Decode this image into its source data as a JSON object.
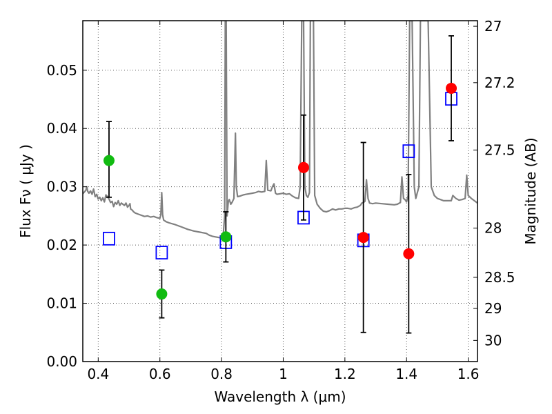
{
  "chart_data": {
    "type": "scatter",
    "xlabel": "Wavelength  λ (μm)",
    "ylabel": "Flux  Fν  ( μJy )",
    "ylabel_right": "Magnitude (AB)",
    "xlim": [
      0.35,
      1.63
    ],
    "ylim": [
      0.0,
      0.0585
    ],
    "grid": true,
    "x_ticks": [
      "0.4",
      "0.6",
      "0.8",
      "1",
      "1.2",
      "1.4",
      "1.6"
    ],
    "y_ticks": [
      "0.00",
      "0.01",
      "0.02",
      "0.03",
      "0.04",
      "0.05"
    ],
    "right_ticks": [
      {
        "label": "27",
        "value": 27.0
      },
      {
        "label": "27.2",
        "value": 27.2
      },
      {
        "label": "27.5",
        "value": 27.5
      },
      {
        "label": "28",
        "value": 28.0
      },
      {
        "label": "28.5",
        "value": 28.5
      },
      {
        "label": "29",
        "value": 29.0
      },
      {
        "label": "30",
        "value": 30.0
      }
    ],
    "colors": {
      "spectrum": "#808080",
      "green": "#11bb11",
      "red": "#ff0000",
      "model_box": "#0000ff",
      "errorbar": "#000000",
      "grid": "#555555"
    },
    "spectrum": [
      [
        0.35,
        0.0288
      ],
      [
        0.355,
        0.0291
      ],
      [
        0.36,
        0.0294
      ],
      [
        0.363,
        0.03
      ],
      [
        0.366,
        0.0292
      ],
      [
        0.37,
        0.0289
      ],
      [
        0.375,
        0.0293
      ],
      [
        0.38,
        0.0287
      ],
      [
        0.385,
        0.0296
      ],
      [
        0.39,
        0.0283
      ],
      [
        0.395,
        0.0287
      ],
      [
        0.4,
        0.0279
      ],
      [
        0.405,
        0.0282
      ],
      [
        0.41,
        0.0276
      ],
      [
        0.415,
        0.0281
      ],
      [
        0.42,
        0.0274
      ],
      [
        0.425,
        0.0286
      ],
      [
        0.43,
        0.0283
      ],
      [
        0.435,
        0.0279
      ],
      [
        0.44,
        0.0273
      ],
      [
        0.445,
        0.0275
      ],
      [
        0.45,
        0.0266
      ],
      [
        0.455,
        0.0273
      ],
      [
        0.46,
        0.027
      ],
      [
        0.465,
        0.0276
      ],
      [
        0.47,
        0.0268
      ],
      [
        0.475,
        0.0272
      ],
      [
        0.48,
        0.027
      ],
      [
        0.485,
        0.0268
      ],
      [
        0.49,
        0.0272
      ],
      [
        0.495,
        0.0265
      ],
      [
        0.5,
        0.0268
      ],
      [
        0.503,
        0.0271
      ],
      [
        0.505,
        0.0262
      ],
      [
        0.51,
        0.026
      ],
      [
        0.515,
        0.0257
      ],
      [
        0.52,
        0.0255
      ],
      [
        0.53,
        0.0253
      ],
      [
        0.54,
        0.0251
      ],
      [
        0.55,
        0.0249
      ],
      [
        0.56,
        0.025
      ],
      [
        0.57,
        0.0248
      ],
      [
        0.58,
        0.0249
      ],
      [
        0.59,
        0.0247
      ],
      [
        0.6,
        0.0246
      ],
      [
        0.603,
        0.0252
      ],
      [
        0.606,
        0.029
      ],
      [
        0.609,
        0.0252
      ],
      [
        0.612,
        0.0243
      ],
      [
        0.62,
        0.024
      ],
      [
        0.63,
        0.0238
      ],
      [
        0.65,
        0.0235
      ],
      [
        0.67,
        0.0231
      ],
      [
        0.69,
        0.0227
      ],
      [
        0.71,
        0.0224
      ],
      [
        0.73,
        0.0222
      ],
      [
        0.75,
        0.022
      ],
      [
        0.76,
        0.0217
      ],
      [
        0.77,
        0.0215
      ],
      [
        0.78,
        0.0214
      ],
      [
        0.79,
        0.0213
      ],
      [
        0.8,
        0.0212
      ],
      [
        0.805,
        0.0214
      ],
      [
        0.81,
        0.025
      ],
      [
        0.812,
        0.0585
      ],
      [
        0.815,
        0.0585
      ],
      [
        0.818,
        0.025
      ],
      [
        0.822,
        0.0275
      ],
      [
        0.825,
        0.0278
      ],
      [
        0.83,
        0.027
      ],
      [
        0.835,
        0.0274
      ],
      [
        0.84,
        0.028
      ],
      [
        0.845,
        0.0392
      ],
      [
        0.848,
        0.03
      ],
      [
        0.852,
        0.0283
      ],
      [
        0.86,
        0.0284
      ],
      [
        0.87,
        0.0286
      ],
      [
        0.88,
        0.0287
      ],
      [
        0.89,
        0.0288
      ],
      [
        0.9,
        0.0289
      ],
      [
        0.91,
        0.029
      ],
      [
        0.92,
        0.0292
      ],
      [
        0.93,
        0.0291
      ],
      [
        0.94,
        0.0292
      ],
      [
        0.945,
        0.0345
      ],
      [
        0.95,
        0.0294
      ],
      [
        0.96,
        0.0293
      ],
      [
        0.965,
        0.03
      ],
      [
        0.97,
        0.0305
      ],
      [
        0.975,
        0.0289
      ],
      [
        0.98,
        0.0287
      ],
      [
        0.99,
        0.0288
      ],
      [
        1.0,
        0.0289
      ],
      [
        1.01,
        0.0287
      ],
      [
        1.02,
        0.0288
      ],
      [
        1.03,
        0.0284
      ],
      [
        1.04,
        0.0281
      ],
      [
        1.05,
        0.028
      ],
      [
        1.055,
        0.03
      ],
      [
        1.06,
        0.0585
      ],
      [
        1.066,
        0.0585
      ],
      [
        1.07,
        0.03
      ],
      [
        1.075,
        0.0285
      ],
      [
        1.08,
        0.0282
      ],
      [
        1.085,
        0.029
      ],
      [
        1.088,
        0.0585
      ],
      [
        1.098,
        0.0585
      ],
      [
        1.102,
        0.0285
      ],
      [
        1.11,
        0.027
      ],
      [
        1.12,
        0.0263
      ],
      [
        1.13,
        0.0258
      ],
      [
        1.14,
        0.0257
      ],
      [
        1.15,
        0.0259
      ],
      [
        1.16,
        0.0262
      ],
      [
        1.17,
        0.026
      ],
      [
        1.18,
        0.0262
      ],
      [
        1.19,
        0.0262
      ],
      [
        1.2,
        0.0263
      ],
      [
        1.21,
        0.0263
      ],
      [
        1.22,
        0.0262
      ],
      [
        1.23,
        0.0264
      ],
      [
        1.24,
        0.0265
      ],
      [
        1.25,
        0.0268
      ],
      [
        1.255,
        0.0272
      ],
      [
        1.26,
        0.0273
      ],
      [
        1.265,
        0.0275
      ],
      [
        1.27,
        0.0312
      ],
      [
        1.275,
        0.028
      ],
      [
        1.28,
        0.0272
      ],
      [
        1.29,
        0.0271
      ],
      [
        1.3,
        0.0272
      ],
      [
        1.32,
        0.0271
      ],
      [
        1.34,
        0.027
      ],
      [
        1.36,
        0.0269
      ],
      [
        1.37,
        0.027
      ],
      [
        1.38,
        0.0273
      ],
      [
        1.385,
        0.0317
      ],
      [
        1.39,
        0.028
      ],
      [
        1.395,
        0.0278
      ],
      [
        1.4,
        0.0274
      ],
      [
        1.405,
        0.0285
      ],
      [
        1.41,
        0.0585
      ],
      [
        1.418,
        0.0585
      ],
      [
        1.425,
        0.03
      ],
      [
        1.43,
        0.028
      ],
      [
        1.44,
        0.03
      ],
      [
        1.445,
        0.0585
      ],
      [
        1.47,
        0.0585
      ],
      [
        1.48,
        0.03
      ],
      [
        1.49,
        0.0285
      ],
      [
        1.5,
        0.028
      ],
      [
        1.51,
        0.0278
      ],
      [
        1.52,
        0.0276
      ],
      [
        1.53,
        0.0276
      ],
      [
        1.545,
        0.0276
      ],
      [
        1.55,
        0.0285
      ],
      [
        1.56,
        0.028
      ],
      [
        1.57,
        0.0277
      ],
      [
        1.58,
        0.0278
      ],
      [
        1.59,
        0.028
      ],
      [
        1.595,
        0.032
      ],
      [
        1.6,
        0.0285
      ],
      [
        1.61,
        0.028
      ],
      [
        1.62,
        0.0276
      ],
      [
        1.63,
        0.0272
      ]
    ],
    "observed": [
      {
        "x": 0.435,
        "y": 0.0345,
        "yerr_low": 0.0282,
        "yerr_high": 0.0412,
        "color": "green"
      },
      {
        "x": 0.606,
        "y": 0.0116,
        "yerr_low": 0.0075,
        "yerr_high": 0.0157,
        "color": "green"
      },
      {
        "x": 0.814,
        "y": 0.0214,
        "yerr_low": 0.0171,
        "yerr_high": 0.0257,
        "color": "green"
      },
      {
        "x": 1.066,
        "y": 0.0333,
        "yerr_low": 0.0243,
        "yerr_high": 0.0423,
        "color": "red"
      },
      {
        "x": 1.26,
        "y": 0.0213,
        "yerr_low": 0.005,
        "yerr_high": 0.0376,
        "color": "red"
      },
      {
        "x": 1.407,
        "y": 0.0185,
        "yerr_low": 0.0049,
        "yerr_high": 0.0321,
        "color": "red"
      },
      {
        "x": 1.545,
        "y": 0.0469,
        "yerr_low": 0.0379,
        "yerr_high": 0.0559,
        "color": "red"
      }
    ],
    "model": [
      {
        "x": 0.435,
        "y": 0.0211
      },
      {
        "x": 0.606,
        "y": 0.0187
      },
      {
        "x": 0.814,
        "y": 0.0205
      },
      {
        "x": 1.066,
        "y": 0.0247
      },
      {
        "x": 1.26,
        "y": 0.0208
      },
      {
        "x": 1.407,
        "y": 0.0361
      },
      {
        "x": 1.545,
        "y": 0.0451
      }
    ]
  }
}
